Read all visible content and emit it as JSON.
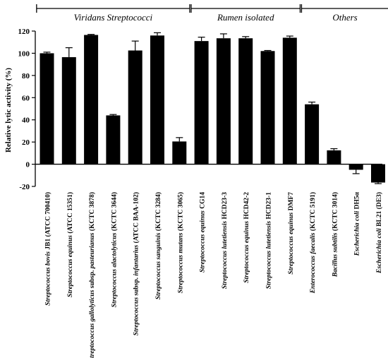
{
  "chart_data": {
    "type": "bar",
    "ylabel": "Relative lytic activity (%)",
    "ylim": [
      -20,
      120
    ],
    "yticks": [
      -20,
      0,
      20,
      40,
      60,
      80,
      100,
      120
    ],
    "groups": [
      {
        "name": "Viridans Streptococci",
        "start": 0,
        "end": 6
      },
      {
        "name": "Rumen isolated",
        "start": 7,
        "end": 11
      },
      {
        "name": "Others",
        "start": 12,
        "end": 15
      }
    ],
    "categories": [
      {
        "italic": "Streptococcus bovis",
        "plain": " JB1 (ATCC 700410)"
      },
      {
        "italic": "Streptococcus equinus",
        "plain": " (ATCC 15351)"
      },
      {
        "italic": "Streptococcus gallolyticus",
        "plain": " subsp. ",
        "italic2": "pasteurianus",
        "plain2": " (KCTC 3878)"
      },
      {
        "italic": "Streptococcus alactolyticus",
        "plain": " (KCTC 3644)"
      },
      {
        "italic": "Streptococcus",
        "plain": " subsp. ",
        "italic2": "infantarius",
        "plain2": " (ATCC BAA-102)"
      },
      {
        "italic": "Streptococcus sanguinis",
        "plain": " (KCTC 3284)"
      },
      {
        "italic": "Streptococcus mutans",
        "plain": " (KCTC 3065)"
      },
      {
        "italic": "Streptococcus equinus",
        "plain": " CG14"
      },
      {
        "italic": "Streptococcus lutetiensis",
        "plain": " HCD23-3"
      },
      {
        "italic": "Streptococcus equinus",
        "plain": " HCD42-2"
      },
      {
        "italic": "Streptococcus lutetiensis",
        "plain": " HCD23-1"
      },
      {
        "italic": "Streptococcus equinus",
        "plain": " DMF7"
      },
      {
        "italic": "Enterococcus faecalis",
        "plain": " (KCTC 5191)"
      },
      {
        "italic": "Bacillus subtilis",
        "plain": " (KCTC 3014)"
      },
      {
        "italic": "Escherichia coli",
        "plain": " DH5α"
      },
      {
        "italic": "Escherichia coli",
        "plain": " BL21 (DE3)"
      }
    ],
    "values": [
      100,
      96.5,
      116.5,
      44,
      102.5,
      116,
      20.5,
      111,
      113.5,
      113.5,
      102,
      114,
      54,
      12.5,
      -5,
      -16.5
    ],
    "errors": [
      1,
      8.5,
      0.5,
      0.8,
      8.5,
      2.5,
      3.5,
      3.5,
      4,
      1.5,
      0.5,
      1.5,
      2,
      1.5,
      3.5,
      1
    ],
    "bar_color": "#000000"
  }
}
